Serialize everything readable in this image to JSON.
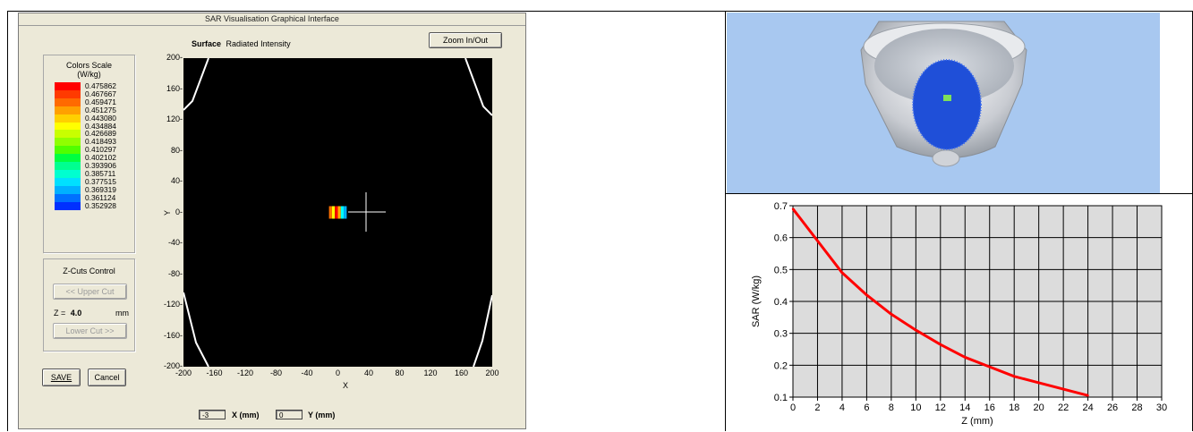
{
  "window": {
    "title": "SAR Visualisation Graphical Interface",
    "zoom_button": "Zoom In/Out",
    "plot_heading_bold": "Surface",
    "plot_heading": "Radiated Intensity"
  },
  "color_scale": {
    "title": "Colors Scale",
    "unit": "(W/kg)",
    "entries": [
      {
        "value": "0.475862",
        "color": "#ff0000"
      },
      {
        "value": "0.467667",
        "color": "#ff3a00"
      },
      {
        "value": "0.459471",
        "color": "#ff6a00"
      },
      {
        "value": "0.451275",
        "color": "#ffa000"
      },
      {
        "value": "0.443080",
        "color": "#ffd000"
      },
      {
        "value": "0.434884",
        "color": "#ffff00"
      },
      {
        "value": "0.426689",
        "color": "#c8ff00"
      },
      {
        "value": "0.418493",
        "color": "#90ff00"
      },
      {
        "value": "0.410297",
        "color": "#50ff00"
      },
      {
        "value": "0.402102",
        "color": "#00ff40"
      },
      {
        "value": "0.393906",
        "color": "#00ff90"
      },
      {
        "value": "0.385711",
        "color": "#00ffd0"
      },
      {
        "value": "0.377515",
        "color": "#00e0ff"
      },
      {
        "value": "0.369319",
        "color": "#00b0ff"
      },
      {
        "value": "0.361124",
        "color": "#0070ff"
      },
      {
        "value": "0.352928",
        "color": "#0030ff"
      }
    ]
  },
  "zcuts": {
    "title": "Z-Cuts Control",
    "upper_button": "<< Upper Cut",
    "z_label": "Z =",
    "z_value": "4.0",
    "z_unit": "mm",
    "lower_button": "Lower Cut >>"
  },
  "actions": {
    "save": "SAVE",
    "cancel": "Cancel"
  },
  "surface_plot": {
    "x_label": "X",
    "y_label": "Y",
    "range": [
      -200,
      200
    ],
    "x_ticks": [
      "-200",
      "-160",
      "-120",
      "-80",
      "-40",
      "0",
      "40",
      "80",
      "120",
      "160",
      "200"
    ],
    "y_ticks": [
      "200",
      "160",
      "120",
      "80",
      "40",
      "0",
      "-40",
      "-80",
      "-120",
      "-160",
      "-200"
    ],
    "hotspot_center": [
      0,
      0
    ],
    "background_color": "#000000"
  },
  "coords": {
    "x_value": "-3",
    "x_label": "X (mm)",
    "y_value": "0",
    "y_label": "Y (mm)"
  },
  "chart_data": {
    "type": "line",
    "xlabel": "Z (mm)",
    "ylabel": "SAR (W/kg)",
    "xlim": [
      0,
      30
    ],
    "ylim": [
      0.1,
      0.7
    ],
    "x_ticks": [
      0,
      2,
      4,
      6,
      8,
      10,
      12,
      14,
      16,
      18,
      20,
      22,
      24,
      26,
      28,
      30
    ],
    "y_ticks": [
      0.7,
      0.6,
      0.5,
      0.4,
      0.3,
      0.2,
      0.1
    ],
    "y_tick_labels": [
      "0.7",
      "0.6",
      "0.5",
      "0.4",
      "0.3",
      "0.2",
      "0.1"
    ],
    "grid": true,
    "series": [
      {
        "color": "#ff0000",
        "x": [
          0,
          2,
          4,
          6,
          8,
          10,
          12,
          14,
          16,
          18,
          20,
          22,
          24
        ],
        "y": [
          0.69,
          0.59,
          0.49,
          0.42,
          0.36,
          0.31,
          0.265,
          0.225,
          0.195,
          0.165,
          0.145,
          0.125,
          0.105
        ]
      }
    ]
  }
}
